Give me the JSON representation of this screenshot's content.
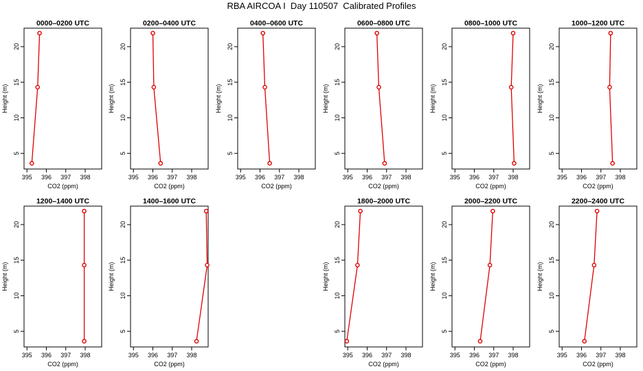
{
  "title": "RBA AIRCOA I  Day 110507  Calibrated Profiles",
  "chart_data": [
    {
      "type": "line",
      "title": "0000–0200 UTC",
      "xlabel": "CO2 (ppm)",
      "ylabel": "Height (m)",
      "x_ticks": [
        "395",
        "396",
        "397",
        "398"
      ],
      "y_ticks": [
        "5",
        "10",
        "15",
        "20"
      ],
      "xlim": [
        394.85,
        398.85
      ],
      "ylim": [
        2.8,
        22.6
      ],
      "grid": false,
      "series": [
        {
          "x": [
            395.25,
            395.55,
            395.65
          ],
          "y": [
            3.6,
            14.3,
            21.9
          ]
        }
      ]
    },
    {
      "type": "line",
      "title": "0200–0400 UTC",
      "xlabel": "CO2 (ppm)",
      "ylabel": "Height (m)",
      "x_ticks": [
        "395",
        "396",
        "397",
        "398"
      ],
      "y_ticks": [
        "5",
        "10",
        "15",
        "20"
      ],
      "xlim": [
        394.85,
        398.85
      ],
      "ylim": [
        2.8,
        22.6
      ],
      "grid": false,
      "series": [
        {
          "x": [
            396.4,
            396.05,
            396.0
          ],
          "y": [
            3.6,
            14.3,
            21.9
          ]
        }
      ]
    },
    {
      "type": "line",
      "title": "0400–0600 UTC",
      "xlabel": "CO2 (ppm)",
      "ylabel": "Height (m)",
      "x_ticks": [
        "395",
        "396",
        "397",
        "398"
      ],
      "y_ticks": [
        "5",
        "10",
        "15",
        "20"
      ],
      "xlim": [
        394.85,
        398.85
      ],
      "ylim": [
        2.8,
        22.6
      ],
      "grid": false,
      "series": [
        {
          "x": [
            396.5,
            396.25,
            396.15
          ],
          "y": [
            3.6,
            14.3,
            21.9
          ]
        }
      ]
    },
    {
      "type": "line",
      "title": "0600–0800 UTC",
      "xlabel": "CO2 (ppm)",
      "ylabel": "Height (m)",
      "x_ticks": [
        "395",
        "396",
        "397",
        "398"
      ],
      "y_ticks": [
        "5",
        "10",
        "15",
        "20"
      ],
      "xlim": [
        394.85,
        398.85
      ],
      "ylim": [
        2.8,
        22.6
      ],
      "grid": false,
      "series": [
        {
          "x": [
            396.9,
            396.6,
            396.5
          ],
          "y": [
            3.6,
            14.3,
            21.9
          ]
        }
      ]
    },
    {
      "type": "line",
      "title": "0800–1000 UTC",
      "xlabel": "CO2 (ppm)",
      "ylabel": "Height (m)",
      "x_ticks": [
        "395",
        "396",
        "397",
        "398"
      ],
      "y_ticks": [
        "5",
        "10",
        "15",
        "20"
      ],
      "xlim": [
        394.85,
        398.85
      ],
      "ylim": [
        2.8,
        22.6
      ],
      "grid": false,
      "series": [
        {
          "x": [
            398.05,
            397.9,
            398.0
          ],
          "y": [
            3.6,
            14.3,
            21.9
          ]
        }
      ]
    },
    {
      "type": "line",
      "title": "1000–1200 UTC",
      "xlabel": "CO2 (ppm)",
      "ylabel": "Height (m)",
      "x_ticks": [
        "395",
        "396",
        "397",
        "398"
      ],
      "y_ticks": [
        "5",
        "10",
        "15",
        "20"
      ],
      "xlim": [
        394.85,
        398.85
      ],
      "ylim": [
        2.8,
        22.6
      ],
      "grid": false,
      "series": [
        {
          "x": [
            397.6,
            397.45,
            397.5
          ],
          "y": [
            3.6,
            14.3,
            21.9
          ]
        }
      ]
    },
    {
      "type": "line",
      "title": "1200–1400 UTC",
      "xlabel": "CO2 (ppm)",
      "ylabel": "Height (m)",
      "x_ticks": [
        "395",
        "396",
        "397",
        "398"
      ],
      "y_ticks": [
        "5",
        "10",
        "15",
        "20"
      ],
      "xlim": [
        394.85,
        398.85
      ],
      "ylim": [
        2.8,
        22.6
      ],
      "grid": false,
      "series": [
        {
          "x": [
            397.95,
            397.95,
            397.95
          ],
          "y": [
            3.6,
            14.3,
            21.9
          ]
        }
      ]
    },
    {
      "type": "line",
      "title": "1400–1600 UTC",
      "xlabel": "CO2 (ppm)",
      "ylabel": "Height (m)",
      "x_ticks": [
        "395",
        "396",
        "397",
        "398"
      ],
      "y_ticks": [
        "5",
        "10",
        "15",
        "20"
      ],
      "xlim": [
        394.85,
        398.85
      ],
      "ylim": [
        2.8,
        22.6
      ],
      "grid": false,
      "series": [
        {
          "x": [
            398.25,
            398.8,
            398.75
          ],
          "y": [
            3.6,
            14.3,
            21.9
          ]
        }
      ]
    },
    {
      "type": "line",
      "title": "1800–2000 UTC",
      "xlabel": "CO2 (ppm)",
      "ylabel": "Height (m)",
      "x_ticks": [
        "395",
        "396",
        "397",
        "398"
      ],
      "y_ticks": [
        "5",
        "10",
        "15",
        "20"
      ],
      "xlim": [
        394.85,
        398.85
      ],
      "ylim": [
        2.8,
        22.6
      ],
      "grid": false,
      "series": [
        {
          "x": [
            394.95,
            395.5,
            395.65
          ],
          "y": [
            3.6,
            14.3,
            21.9
          ]
        }
      ]
    },
    {
      "type": "line",
      "title": "2000–2200 UTC",
      "xlabel": "CO2 (ppm)",
      "ylabel": "Height (m)",
      "x_ticks": [
        "395",
        "396",
        "397",
        "398"
      ],
      "y_ticks": [
        "5",
        "10",
        "15",
        "20"
      ],
      "xlim": [
        394.85,
        398.85
      ],
      "ylim": [
        2.8,
        22.6
      ],
      "grid": false,
      "series": [
        {
          "x": [
            396.3,
            396.8,
            396.95
          ],
          "y": [
            3.6,
            14.3,
            21.9
          ]
        }
      ]
    },
    {
      "type": "line",
      "title": "2200–2400 UTC",
      "xlabel": "CO2 (ppm)",
      "ylabel": "Height (m)",
      "x_ticks": [
        "395",
        "396",
        "397",
        "398"
      ],
      "y_ticks": [
        "5",
        "10",
        "15",
        "20"
      ],
      "xlim": [
        394.85,
        398.85
      ],
      "ylim": [
        2.8,
        22.6
      ],
      "grid": false,
      "series": [
        {
          "x": [
            396.15,
            396.65,
            396.8
          ],
          "y": [
            3.6,
            14.3,
            21.9
          ]
        }
      ]
    }
  ],
  "colors": {
    "series": "#dd0000",
    "axis": "#000000"
  }
}
